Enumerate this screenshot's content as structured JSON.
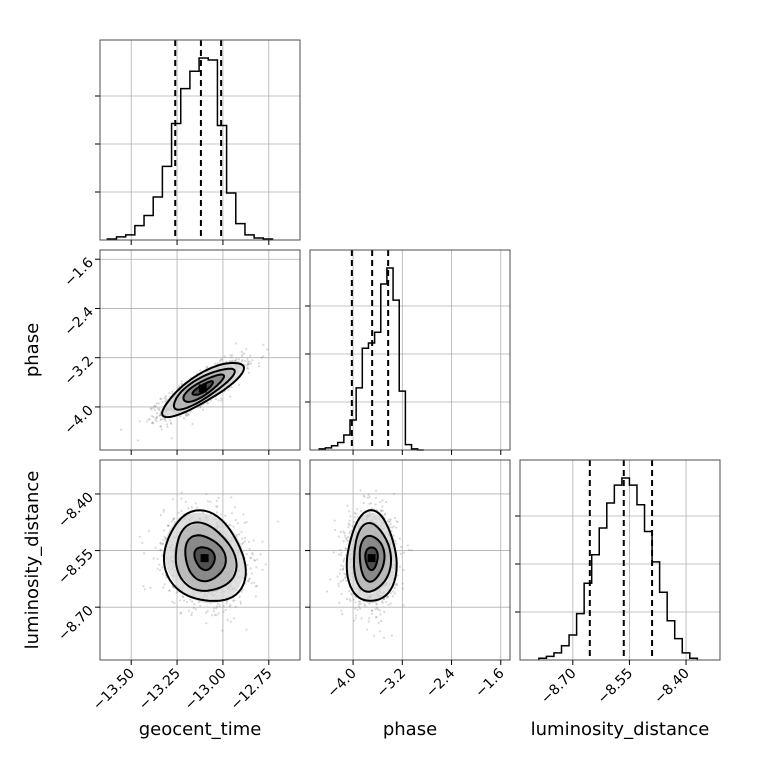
{
  "chart_data": {
    "type": "corner",
    "parameters": [
      "geocent_time",
      "phase",
      "luminosity_distance"
    ],
    "axis_labels": {
      "geocent_time": "geocent_time",
      "phase": "phase",
      "luminosity_distance": "luminosity_distance"
    },
    "ranges": {
      "geocent_time": [
        -13.67,
        -12.58
      ],
      "phase": [
        -4.7,
        -1.45
      ],
      "luminosity_distance": [
        -8.84,
        -8.31
      ]
    },
    "ticks": {
      "geocent_time": {
        "values": [
          -13.5,
          -13.25,
          -13.0,
          -12.75
        ],
        "labels": [
          "−13.50",
          "−13.25",
          "−13.00",
          "−12.75"
        ]
      },
      "phase": {
        "values": [
          -4.0,
          -3.2,
          -2.4,
          -1.6
        ],
        "labels": [
          "−4.0",
          "−3.2",
          "−2.4",
          "−1.6"
        ]
      },
      "luminosity_distance": {
        "values": [
          -8.7,
          -8.55,
          -8.4
        ],
        "labels": [
          "−8.70",
          "−8.55",
          "−8.40"
        ]
      }
    },
    "histograms": {
      "geocent_time": {
        "bin_edges": [
          -13.63,
          -13.58,
          -13.53,
          -13.48,
          -13.43,
          -13.38,
          -13.33,
          -13.28,
          -13.23,
          -13.18,
          -13.13,
          -13.08,
          -13.03,
          -12.98,
          -12.93,
          -12.88,
          -12.83,
          -12.78,
          -12.73
        ],
        "counts": [
          1,
          3,
          5,
          14,
          24,
          42,
          72,
          114,
          148,
          165,
          178,
          176,
          112,
          46,
          16,
          5,
          2,
          1
        ],
        "quantiles": [
          -13.26,
          -13.12,
          -13.01
        ]
      },
      "phase": {
        "bin_edges": [
          -4.55,
          -4.45,
          -4.35,
          -4.25,
          -4.15,
          -4.05,
          -3.95,
          -3.85,
          -3.75,
          -3.65,
          -3.55,
          -3.45,
          -3.35,
          -3.25,
          -3.15,
          -3.05,
          -2.95,
          -2.85
        ],
        "counts": [
          1,
          2,
          4,
          7,
          14,
          28,
          58,
          95,
          100,
          110,
          155,
          170,
          140,
          55,
          5,
          1,
          0
        ],
        "quantiles": [
          -4.02,
          -3.69,
          -3.43
        ]
      },
      "luminosity_distance": {
        "bin_edges": [
          -8.79,
          -8.77,
          -8.75,
          -8.73,
          -8.71,
          -8.69,
          -8.67,
          -8.65,
          -8.63,
          -8.61,
          -8.59,
          -8.57,
          -8.55,
          -8.53,
          -8.51,
          -8.49,
          -8.47,
          -8.45,
          -8.43,
          -8.41,
          -8.39,
          -8.37
        ],
        "counts": [
          1,
          2,
          4,
          8,
          14,
          26,
          43,
          59,
          74,
          88,
          98,
          102,
          98,
          87,
          72,
          55,
          38,
          22,
          12,
          4,
          1
        ],
        "quantiles": [
          -8.655,
          -8.565,
          -8.49
        ]
      }
    },
    "joint": [
      {
        "x": "geocent_time",
        "y": "phase",
        "center": [
          -13.11,
          -3.7
        ],
        "spread": [
          0.11,
          0.22
        ],
        "rho": 0.82,
        "contour_levels": [
          0.5,
          1.0,
          1.5,
          2.0
        ]
      },
      {
        "x": "geocent_time",
        "y": "luminosity_distance",
        "center": [
          -13.1,
          -8.57
        ],
        "spread": [
          0.11,
          0.06
        ],
        "rho": -0.15,
        "contour_levels": [
          0.5,
          1.0,
          1.5,
          2.0
        ]
      },
      {
        "x": "phase",
        "y": "luminosity_distance",
        "center": [
          -3.7,
          -8.57
        ],
        "spread": [
          0.2,
          0.06
        ],
        "rho": 0.0,
        "contour_levels": [
          0.5,
          1.0,
          1.5,
          2.0
        ]
      }
    ],
    "grid": true,
    "colors": {
      "line": "#000000",
      "points": "#777777",
      "grid": "#b0b0b0"
    }
  }
}
